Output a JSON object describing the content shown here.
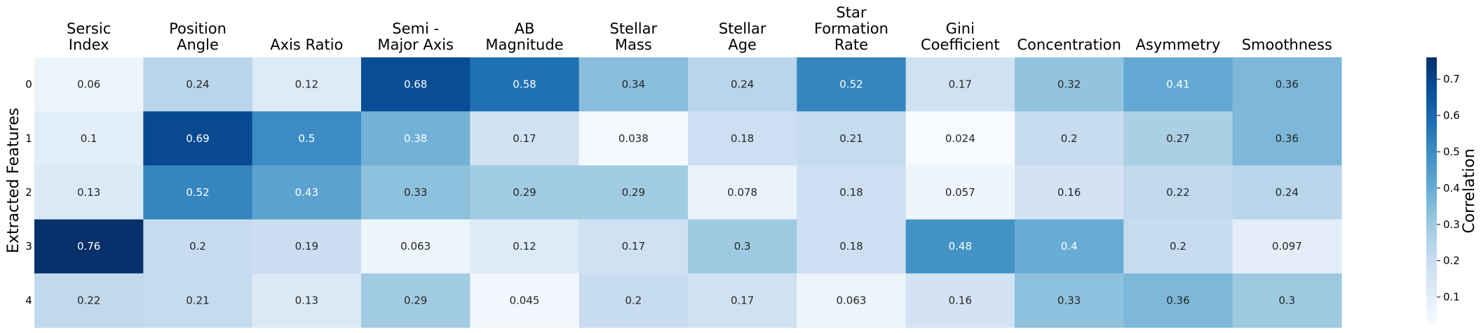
{
  "chart_data": {
    "type": "heatmap",
    "x_categories": [
      "Sersic\nIndex",
      "Position\nAngle",
      "Axis Ratio",
      "Semi -\nMajor Axis",
      "AB\nMagnitude",
      "Stellar\nMass",
      "Stellar\nAge",
      "Star\nFormation\nRate",
      "Gini\nCoefficient",
      "Concentration",
      "Asymmetry",
      "Smoothness"
    ],
    "y_categories": [
      "0",
      "1",
      "2",
      "3",
      "4"
    ],
    "ylabel": "Extracted Features",
    "colorbar_label": "Correlation",
    "colorbar_ticks": [
      "0.1",
      "0.2",
      "0.3",
      "0.4",
      "0.5",
      "0.6",
      "0.7"
    ],
    "colorbar_range": [
      0.024,
      0.76
    ],
    "colormap": "Blues",
    "values": [
      [
        "0.06",
        "0.24",
        "0.12",
        "0.68",
        "0.58",
        "0.34",
        "0.24",
        "0.52",
        "0.17",
        "0.32",
        "0.41",
        "0.36"
      ],
      [
        "0.1",
        "0.69",
        "0.5",
        "0.38",
        "0.17",
        "0.038",
        "0.18",
        "0.21",
        "0.024",
        "0.2",
        "0.27",
        "0.36"
      ],
      [
        "0.13",
        "0.52",
        "0.43",
        "0.33",
        "0.29",
        "0.29",
        "0.078",
        "0.18",
        "0.057",
        "0.16",
        "0.22",
        "0.24"
      ],
      [
        "0.76",
        "0.2",
        "0.19",
        "0.063",
        "0.12",
        "0.17",
        "0.3",
        "0.18",
        "0.48",
        "0.4",
        "0.2",
        "0.097"
      ],
      [
        "0.22",
        "0.21",
        "0.13",
        "0.29",
        "0.045",
        "0.2",
        "0.17",
        "0.063",
        "0.16",
        "0.33",
        "0.36",
        "0.3"
      ]
    ]
  }
}
